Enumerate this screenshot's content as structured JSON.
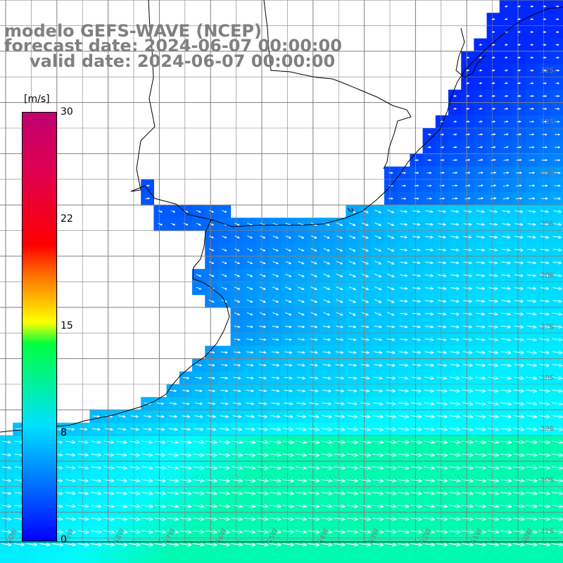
{
  "title": {
    "line1": "modelo GEFS-WAVE (NCEP)",
    "line2": "forecast date: 2024-06-07 00:00:00",
    "line3": "valid date: 2024-06-07 00:00:00"
  },
  "colorbar": {
    "unit": "[m/s]",
    "ticks": [
      "30",
      "22",
      "15",
      "8",
      "0"
    ],
    "tick_values": [
      30,
      22,
      15,
      8,
      0
    ],
    "vmin": 0,
    "vmax": 30,
    "colors": {
      "low": "#0000ff",
      "mid_low": "#00e0ff",
      "mid": "#00ff40",
      "mid_high": "#ffff00",
      "high": "#ff0000",
      "top": "#c00070"
    }
  },
  "map": {
    "land_color": "#ffffff",
    "coastline_color": "#000000",
    "grid_color": "#808080",
    "arrow_color": "#ffffff",
    "lat_labels": [
      "32S",
      "33S",
      "34S",
      "35S",
      "36S",
      "37S",
      "38S",
      "39S",
      "40S",
      "41S"
    ],
    "lon_labels": [
      "60W",
      "59W",
      "58W",
      "57W",
      "56W",
      "55W",
      "54W",
      "53W",
      "52W",
      "51W",
      "50W"
    ],
    "field": "wind speed (m/s)",
    "wind_direction": "westerly to west-northwesterly",
    "speed_range_estimate": [
      3,
      10
    ]
  }
}
